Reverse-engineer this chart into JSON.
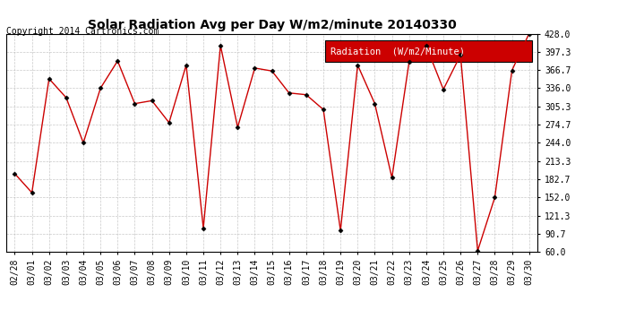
{
  "title": "Solar Radiation Avg per Day W/m2/minute 20140330",
  "copyright": "Copyright 2014 Cartronics.com",
  "legend_label": "Radiation  (W/m2/Minute)",
  "legend_bg": "#cc0000",
  "legend_text_color": "#ffffff",
  "dates": [
    "02/28",
    "03/01",
    "03/02",
    "03/03",
    "03/04",
    "03/05",
    "03/06",
    "03/07",
    "03/08",
    "03/09",
    "03/10",
    "03/11",
    "03/12",
    "03/13",
    "03/14",
    "03/15",
    "03/16",
    "03/17",
    "03/18",
    "03/19",
    "03/20",
    "03/21",
    "03/22",
    "03/23",
    "03/24",
    "03/25",
    "03/26",
    "03/27",
    "03/28",
    "03/29",
    "03/30"
  ],
  "values": [
    192,
    160,
    352,
    320,
    244,
    336,
    382,
    310,
    315,
    278,
    375,
    100,
    408,
    270,
    370,
    365,
    328,
    325,
    300,
    96,
    375,
    310,
    185,
    380,
    407,
    334,
    392,
    62,
    152,
    366,
    428
  ],
  "line_color": "#cc0000",
  "marker_color": "#000000",
  "bg_color": "#ffffff",
  "plot_bg_color": "#ffffff",
  "grid_color": "#bbbbbb",
  "ylim": [
    60.0,
    428.0
  ],
  "yticks": [
    60.0,
    90.7,
    121.3,
    152.0,
    182.7,
    213.3,
    244.0,
    274.7,
    305.3,
    336.0,
    366.7,
    397.3,
    428.0
  ],
  "title_fontsize": 10,
  "copyright_fontsize": 7,
  "tick_fontsize": 7,
  "legend_fontsize": 7.5
}
